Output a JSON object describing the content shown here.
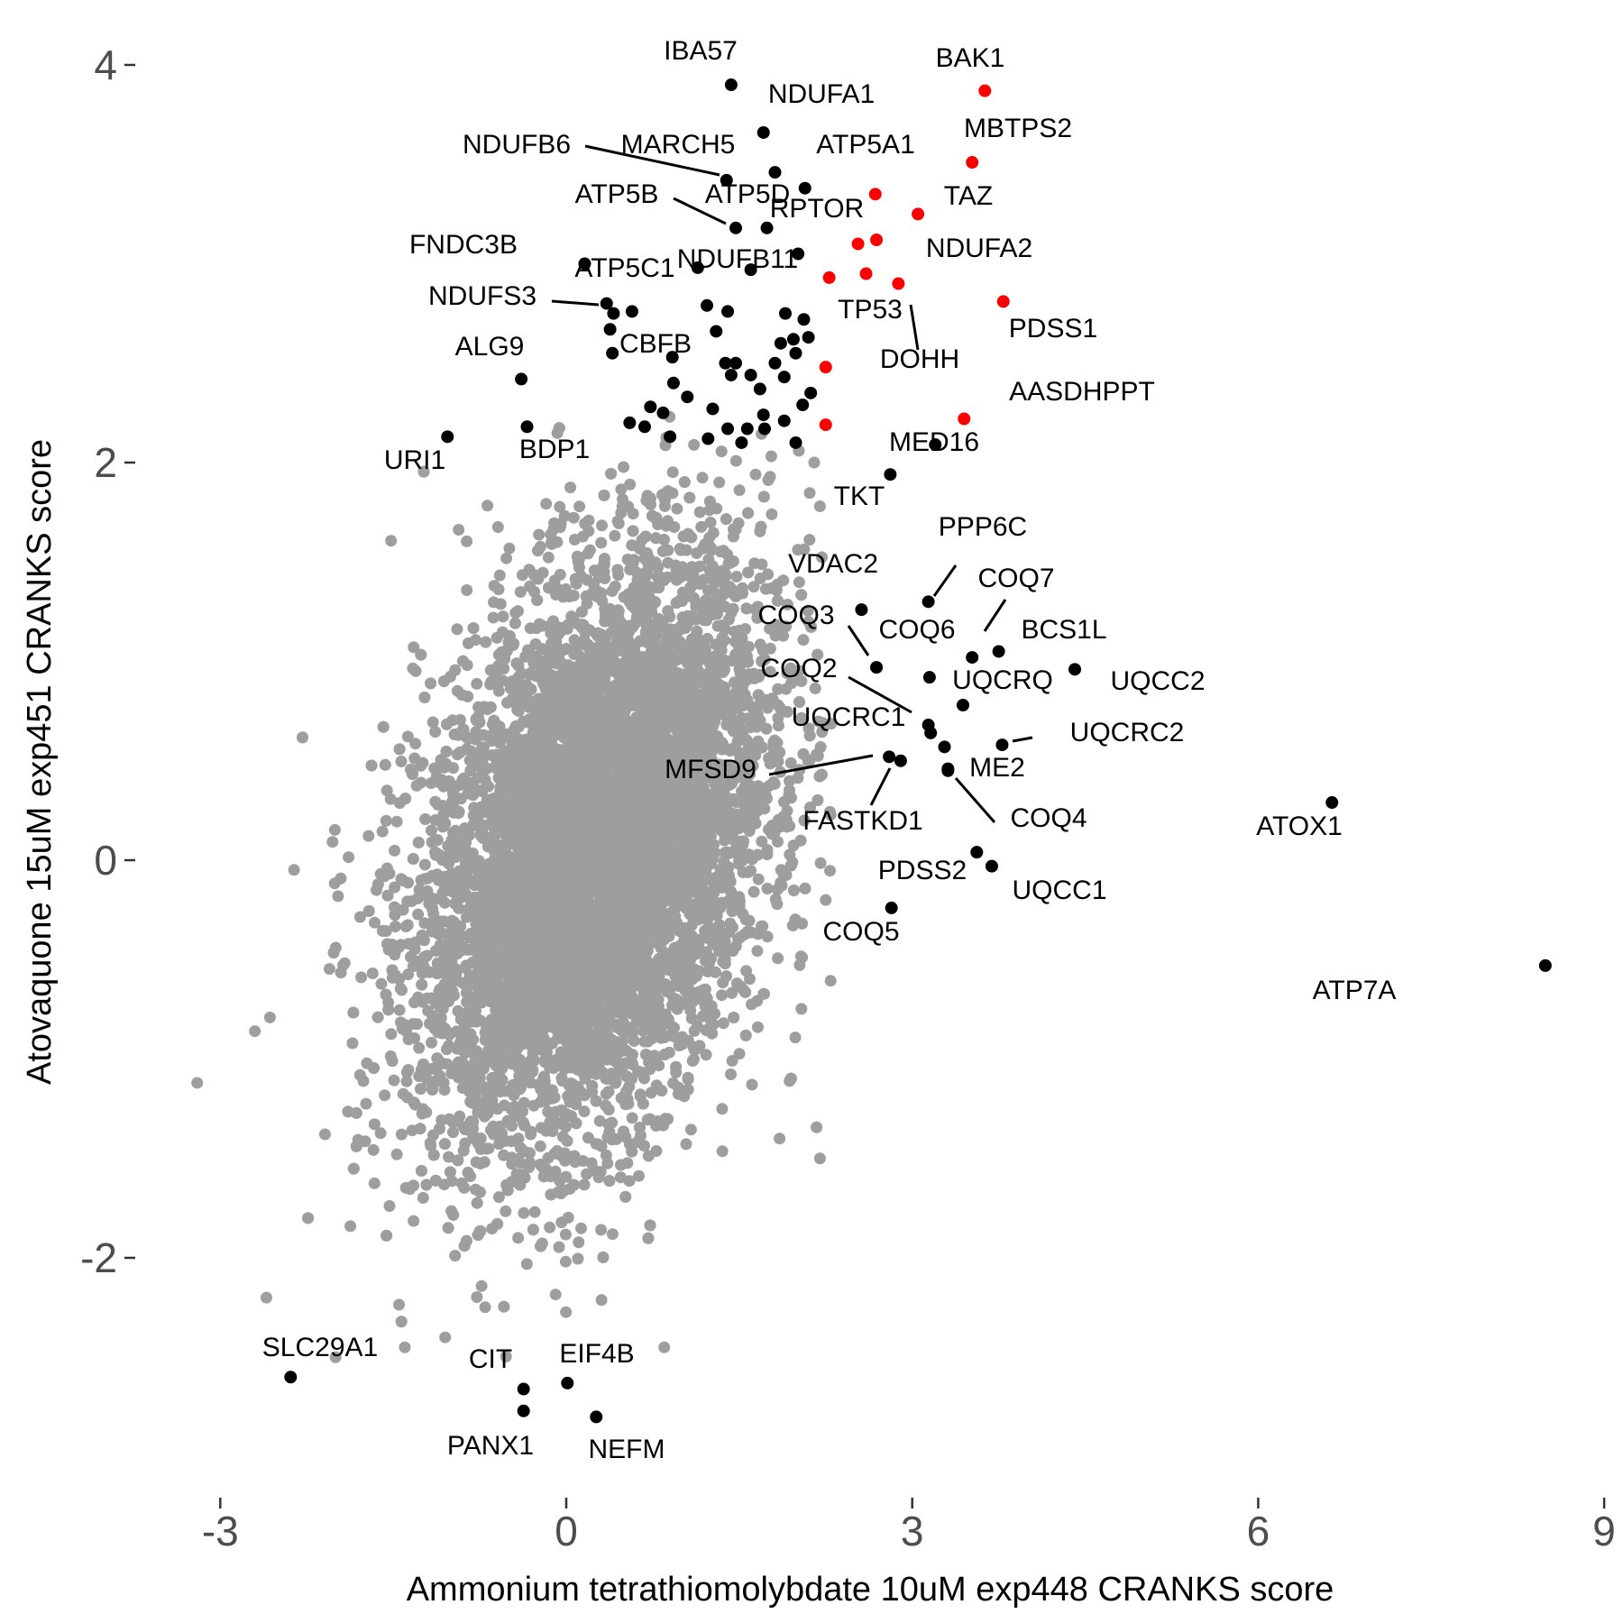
{
  "chart_data": {
    "type": "scatter",
    "xlabel": "Ammonium tetrathiomolybdate 10uM exp448 CRANKS score",
    "ylabel": "Atovaquone 15uM exp451 CRANKS score",
    "xlim": [
      -3.3,
      9.0
    ],
    "ylim": [
      -3.0,
      4.15
    ],
    "x_ticks": [
      -3,
      0,
      3,
      6,
      9
    ],
    "y_ticks": [
      -2,
      0,
      2,
      4
    ],
    "grid": false,
    "colors": {
      "background": "#9e9e9e",
      "highlight": "#000000",
      "red": "#ff0000"
    },
    "background_cloud": {
      "description_points": "approx 18000 genes, roughly bivariate normal",
      "x_mean": 0.25,
      "x_sd": 0.75,
      "y_mean": 0.05,
      "y_sd": 0.72,
      "correlation": 0.35,
      "extra_points": [
        {
          "x": -3.2,
          "y": -1.12
        },
        {
          "x": -2.7,
          "y": -0.86
        },
        {
          "x": -2.6,
          "y": -2.2
        },
        {
          "x": 2.2,
          "y": -1.5
        },
        {
          "x": 2.25,
          "y": -0.2
        },
        {
          "x": 2.2,
          "y": 1.78
        },
        {
          "x": 0.85,
          "y": -2.45
        },
        {
          "x": 2.15,
          "y": 2.0
        },
        {
          "x": 2.1,
          "y": 1.2
        },
        {
          "x": -1.4,
          "y": -2.45
        },
        {
          "x": -1.05,
          "y": -2.4
        },
        {
          "x": 1.85,
          "y": -1.4
        },
        {
          "x": -2.0,
          "y": -2.5
        }
      ]
    },
    "labeled_points": [
      {
        "label": "IBA57",
        "x": 1.43,
        "y": 3.9,
        "color": "black"
      },
      {
        "label": "BAK1",
        "x": 3.63,
        "y": 3.87,
        "color": "red"
      },
      {
        "label": "NDUFA1",
        "x": 1.71,
        "y": 3.66,
        "color": "black"
      },
      {
        "label": "MBTPS2",
        "x": 3.52,
        "y": 3.51,
        "color": "red"
      },
      {
        "label": "MARCH5",
        "x": 1.81,
        "y": 3.46,
        "color": "black"
      },
      {
        "label": "NDUFB6",
        "x": 1.39,
        "y": 3.42,
        "color": "black"
      },
      {
        "label": "ATP5A1",
        "x": 2.07,
        "y": 3.38,
        "color": "black"
      },
      {
        "label": "TAZ",
        "x": 2.68,
        "y": 3.35,
        "color": "red"
      },
      {
        "label": "RPTOR",
        "x": 3.05,
        "y": 3.25,
        "color": "red"
      },
      {
        "label": "ATP5B",
        "x": 1.47,
        "y": 3.18,
        "color": "black"
      },
      {
        "label": "ATP5D",
        "x": 1.74,
        "y": 3.18,
        "color": "black"
      },
      {
        "label": "NDUFB11",
        "x": 2.53,
        "y": 3.1,
        "color": "red"
      },
      {
        "label": "",
        "x": 2.69,
        "y": 3.12,
        "color": "red"
      },
      {
        "label": "",
        "x": 2.01,
        "y": 3.05,
        "color": "black"
      },
      {
        "label": "FNDC3B",
        "x": 0.16,
        "y": 3.0,
        "color": "black"
      },
      {
        "label": "",
        "x": 1.14,
        "y": 2.98,
        "color": "black"
      },
      {
        "label": "",
        "x": 1.6,
        "y": 2.97,
        "color": "black"
      },
      {
        "label": "NDUFA2",
        "x": 2.88,
        "y": 2.9,
        "color": "red"
      },
      {
        "label": "",
        "x": 2.6,
        "y": 2.95,
        "color": "red"
      },
      {
        "label": "",
        "x": 2.28,
        "y": 2.93,
        "color": "red"
      },
      {
        "label": "PDSS1",
        "x": 3.79,
        "y": 2.81,
        "color": "red"
      },
      {
        "label": "NDUFS3",
        "x": 0.35,
        "y": 2.8,
        "color": "black"
      },
      {
        "label": "ATP5C1",
        "x": 0.41,
        "y": 2.75,
        "color": "black"
      },
      {
        "label": "",
        "x": 0.57,
        "y": 2.76,
        "color": "black"
      },
      {
        "label": "",
        "x": 1.22,
        "y": 2.79,
        "color": "black"
      },
      {
        "label": "",
        "x": 1.4,
        "y": 2.76,
        "color": "black"
      },
      {
        "label": "",
        "x": 1.9,
        "y": 2.75,
        "color": "black"
      },
      {
        "label": "TP53",
        "x": 2.06,
        "y": 2.72,
        "color": "black"
      },
      {
        "label": "",
        "x": 0.38,
        "y": 2.67,
        "color": "black"
      },
      {
        "label": "",
        "x": 1.3,
        "y": 2.66,
        "color": "black"
      },
      {
        "label": "",
        "x": 1.97,
        "y": 2.62,
        "color": "black"
      },
      {
        "label": "DOHH",
        "x": 2.1,
        "y": 2.63,
        "color": "black"
      },
      {
        "label": "",
        "x": 1.86,
        "y": 2.6,
        "color": "black"
      },
      {
        "label": "CBFB",
        "x": 0.4,
        "y": 2.55,
        "color": "black"
      },
      {
        "label": "",
        "x": 0.92,
        "y": 2.53,
        "color": "black"
      },
      {
        "label": "",
        "x": 1.99,
        "y": 2.55,
        "color": "black"
      },
      {
        "label": "",
        "x": 1.38,
        "y": 2.5,
        "color": "black"
      },
      {
        "label": "",
        "x": 1.47,
        "y": 2.5,
        "color": "black"
      },
      {
        "label": "",
        "x": 1.81,
        "y": 2.5,
        "color": "black"
      },
      {
        "label": "",
        "x": 2.25,
        "y": 2.48,
        "color": "red"
      },
      {
        "label": "",
        "x": 1.43,
        "y": 2.44,
        "color": "black"
      },
      {
        "label": "",
        "x": 1.6,
        "y": 2.44,
        "color": "black"
      },
      {
        "label": "",
        "x": 1.89,
        "y": 2.43,
        "color": "black"
      },
      {
        "label": "ALG9",
        "x": -0.39,
        "y": 2.42,
        "color": "black"
      },
      {
        "label": "",
        "x": 0.93,
        "y": 2.4,
        "color": "black"
      },
      {
        "label": "",
        "x": 1.68,
        "y": 2.37,
        "color": "black"
      },
      {
        "label": "",
        "x": 1.05,
        "y": 2.33,
        "color": "black"
      },
      {
        "label": "",
        "x": 2.12,
        "y": 2.35,
        "color": "black"
      },
      {
        "label": "",
        "x": 0.73,
        "y": 2.28,
        "color": "black"
      },
      {
        "label": "",
        "x": 2.05,
        "y": 2.29,
        "color": "black"
      },
      {
        "label": "",
        "x": 1.27,
        "y": 2.27,
        "color": "black"
      },
      {
        "label": "",
        "x": 0.84,
        "y": 2.25,
        "color": "black"
      },
      {
        "label": "",
        "x": 1.71,
        "y": 2.24,
        "color": "black"
      },
      {
        "label": "AASDHPPT",
        "x": 3.45,
        "y": 2.22,
        "color": "red"
      },
      {
        "label": "",
        "x": 0.55,
        "y": 2.2,
        "color": "black"
      },
      {
        "label": "",
        "x": 1.89,
        "y": 2.21,
        "color": "black"
      },
      {
        "label": "",
        "x": 0.68,
        "y": 2.18,
        "color": "black"
      },
      {
        "label": "BDP1",
        "x": -0.34,
        "y": 2.18,
        "color": "black"
      },
      {
        "label": "",
        "x": 1.4,
        "y": 2.17,
        "color": "black"
      },
      {
        "label": "",
        "x": 1.57,
        "y": 2.17,
        "color": "black"
      },
      {
        "label": "",
        "x": 1.72,
        "y": 2.17,
        "color": "black"
      },
      {
        "label": "",
        "x": 2.25,
        "y": 2.19,
        "color": "red"
      },
      {
        "label": "URI1",
        "x": -1.03,
        "y": 2.13,
        "color": "black"
      },
      {
        "label": "",
        "x": 0.9,
        "y": 2.13,
        "color": "black"
      },
      {
        "label": "",
        "x": 1.23,
        "y": 2.12,
        "color": "black"
      },
      {
        "label": "",
        "x": 1.52,
        "y": 2.1,
        "color": "black"
      },
      {
        "label": "",
        "x": 1.99,
        "y": 2.1,
        "color": "black"
      },
      {
        "label": "MED16",
        "x": 3.2,
        "y": 2.09,
        "color": "black"
      },
      {
        "label": "TKT",
        "x": 2.81,
        "y": 1.94,
        "color": "black"
      },
      {
        "label": "PPP6C",
        "x": 3.14,
        "y": 1.3,
        "color": "black"
      },
      {
        "label": "VDAC2",
        "x": 2.56,
        "y": 1.26,
        "color": "black"
      },
      {
        "label": "COQ7",
        "x": 3.52,
        "y": 1.02,
        "color": "black"
      },
      {
        "label": "BCS1L",
        "x": 3.75,
        "y": 1.05,
        "color": "black"
      },
      {
        "label": "COQ3",
        "x": 2.69,
        "y": 0.97,
        "color": "black"
      },
      {
        "label": "COQ6",
        "x": 3.15,
        "y": 0.92,
        "color": "black"
      },
      {
        "label": "UQCC2",
        "x": 4.41,
        "y": 0.96,
        "color": "black"
      },
      {
        "label": "UQCRQ",
        "x": 3.44,
        "y": 0.78,
        "color": "black"
      },
      {
        "label": "COQ2",
        "x": 3.14,
        "y": 0.68,
        "color": "black"
      },
      {
        "label": "UQCRC1",
        "x": 3.16,
        "y": 0.64,
        "color": "black"
      },
      {
        "label": "UQCRC2",
        "x": 3.78,
        "y": 0.58,
        "color": "black"
      },
      {
        "label": "",
        "x": 3.28,
        "y": 0.57,
        "color": "black"
      },
      {
        "label": "MFSD9",
        "x": 2.8,
        "y": 0.52,
        "color": "black"
      },
      {
        "label": "FASTKD1",
        "x": 2.9,
        "y": 0.5,
        "color": "black"
      },
      {
        "label": "ME2",
        "x": 3.31,
        "y": 0.46,
        "color": "black"
      },
      {
        "label": "COQ4",
        "x": 3.31,
        "y": 0.45,
        "color": "black"
      },
      {
        "label": "ATOX1",
        "x": 6.64,
        "y": 0.29,
        "color": "black"
      },
      {
        "label": "PDSS2",
        "x": 3.56,
        "y": 0.04,
        "color": "black"
      },
      {
        "label": "UQCC1",
        "x": 3.69,
        "y": -0.03,
        "color": "black"
      },
      {
        "label": "COQ5",
        "x": 2.82,
        "y": -0.24,
        "color": "black"
      },
      {
        "label": "ATP7A",
        "x": 8.49,
        "y": -0.53,
        "color": "black"
      },
      {
        "label": "SLC29A1",
        "x": -2.39,
        "y": -2.6,
        "color": "black"
      },
      {
        "label": "EIF4B",
        "x": 0.01,
        "y": -2.63,
        "color": "black"
      },
      {
        "label": "CIT",
        "x": -0.37,
        "y": -2.66,
        "color": "black"
      },
      {
        "label": "PANX1",
        "x": -0.37,
        "y": -2.77,
        "color": "black"
      },
      {
        "label": "NEFM",
        "x": 0.26,
        "y": -2.8,
        "color": "black"
      }
    ]
  }
}
